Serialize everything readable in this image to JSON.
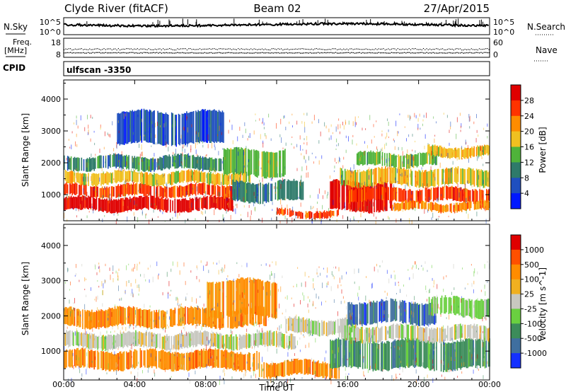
{
  "header": {
    "station": "Clyde River (fitACF)",
    "beam": "Beam 02",
    "date": "27/Apr/2015"
  },
  "status_panels": {
    "nsky_label": "N.Sky",
    "nsky_ticks": [
      "10^5",
      "10^0"
    ],
    "nsearch_label": "N.Search",
    "nsearch_ticks": [
      "10^5",
      "10^0"
    ],
    "freq_label_1": "Freq.",
    "freq_label_2": "[MHz]",
    "freq_ticks": [
      "18",
      "8"
    ],
    "nave_label": "Nave",
    "nave_ticks": [
      "60",
      "0"
    ],
    "cpid_label": "CPID",
    "cpid_value": "ulfscan -3350"
  },
  "time_axis": {
    "label": "Time UT",
    "ticks": [
      "00:00",
      "04:00",
      "08:00",
      "12:00",
      "16:00",
      "20:00",
      "00:00"
    ]
  },
  "chart_data": [
    {
      "type": "heatmap",
      "name": "power",
      "ylabel": "Slant Range [km]",
      "yticks": [
        1000,
        2000,
        3000,
        4000
      ],
      "ylim": [
        180,
        4600
      ],
      "xlim_hours": [
        0,
        24
      ],
      "colorbar_label": "Power [dB]",
      "colorbar_ticks": [
        "4",
        "8",
        "12",
        "16",
        "20",
        "24",
        "28"
      ],
      "colorbar_colors": [
        "#0018ff",
        "#1f4fbf",
        "#2e7a6a",
        "#4fb33a",
        "#f0c020",
        "#ff8c00",
        "#ff3300",
        "#e00000"
      ],
      "bands": [
        {
          "start": 0.0,
          "end": 9.5,
          "range_lo": 500,
          "range_hi": 900,
          "level": 7
        },
        {
          "start": 0.0,
          "end": 10.0,
          "range_lo": 950,
          "range_hi": 1300,
          "level": 6
        },
        {
          "start": 0.0,
          "end": 10.5,
          "range_lo": 1350,
          "range_hi": 1700,
          "level": 4
        },
        {
          "start": 0.0,
          "end": 9.0,
          "range_lo": 1800,
          "range_hi": 2200,
          "level": 2
        },
        {
          "start": 9.0,
          "end": 12.5,
          "range_lo": 1600,
          "range_hi": 2400,
          "level": 3
        },
        {
          "start": 9.5,
          "end": 13.5,
          "range_lo": 800,
          "range_hi": 1400,
          "level": 2
        },
        {
          "start": 12.0,
          "end": 15.5,
          "range_lo": 300,
          "range_hi": 500,
          "level": 6
        },
        {
          "start": 15.0,
          "end": 18.5,
          "range_lo": 500,
          "range_hi": 1400,
          "level": 7
        },
        {
          "start": 15.5,
          "end": 24.0,
          "range_lo": 1300,
          "range_hi": 1800,
          "level": 4
        },
        {
          "start": 16.0,
          "end": 24.0,
          "range_lo": 800,
          "range_hi": 1200,
          "level": 6
        },
        {
          "start": 16.5,
          "end": 21.0,
          "range_lo": 1900,
          "range_hi": 2300,
          "level": 3
        },
        {
          "start": 20.5,
          "end": 24.0,
          "range_lo": 2200,
          "range_hi": 2500,
          "level": 4
        },
        {
          "start": 18.5,
          "end": 24.0,
          "range_lo": 500,
          "range_hi": 750,
          "level": 5
        },
        {
          "start": 3.0,
          "end": 9.0,
          "range_lo": 2600,
          "range_hi": 3600,
          "level": 1
        }
      ]
    },
    {
      "type": "heatmap",
      "name": "velocity",
      "ylabel": "Slant Range [km]",
      "yticks": [
        1000,
        2000,
        3000,
        4000
      ],
      "ylim": [
        180,
        4600
      ],
      "xlim_hours": [
        0,
        24
      ],
      "colorbar_label": "Velocity [m s^-1]",
      "colorbar_ticks": [
        "1000",
        "500",
        "100",
        "25",
        "-25",
        "-100",
        "-500",
        "-1000"
      ],
      "colorbar_colors": [
        "#1430ff",
        "#3f6f9f",
        "#3c8c5a",
        "#6ad040",
        "#c8c8c0",
        "#f0b020",
        "#ff8c00",
        "#ff5000",
        "#e00000"
      ],
      "bands": [
        {
          "start": 0.0,
          "end": 11.0,
          "range_lo": 500,
          "range_hi": 1000,
          "level": 6
        },
        {
          "start": 0.0,
          "end": 13.0,
          "range_lo": 1100,
          "range_hi": 1500,
          "level": 4
        },
        {
          "start": 0.0,
          "end": 11.5,
          "range_lo": 1700,
          "range_hi": 2200,
          "level": 6
        },
        {
          "start": 8.0,
          "end": 12.0,
          "range_lo": 2000,
          "range_hi": 3000,
          "level": 6
        },
        {
          "start": 11.0,
          "end": 15.5,
          "range_lo": 300,
          "range_hi": 700,
          "level": 6
        },
        {
          "start": 12.5,
          "end": 16.5,
          "range_lo": 1500,
          "range_hi": 1900,
          "level": 4
        },
        {
          "start": 15.0,
          "end": 24.0,
          "range_lo": 500,
          "range_hi": 1300,
          "level": 2
        },
        {
          "start": 15.5,
          "end": 24.0,
          "range_lo": 1300,
          "range_hi": 1700,
          "level": 4
        },
        {
          "start": 16.0,
          "end": 21.0,
          "range_lo": 1800,
          "range_hi": 2400,
          "level": 1
        },
        {
          "start": 20.5,
          "end": 24.0,
          "range_lo": 2000,
          "range_hi": 2500,
          "level": 3
        }
      ]
    }
  ]
}
